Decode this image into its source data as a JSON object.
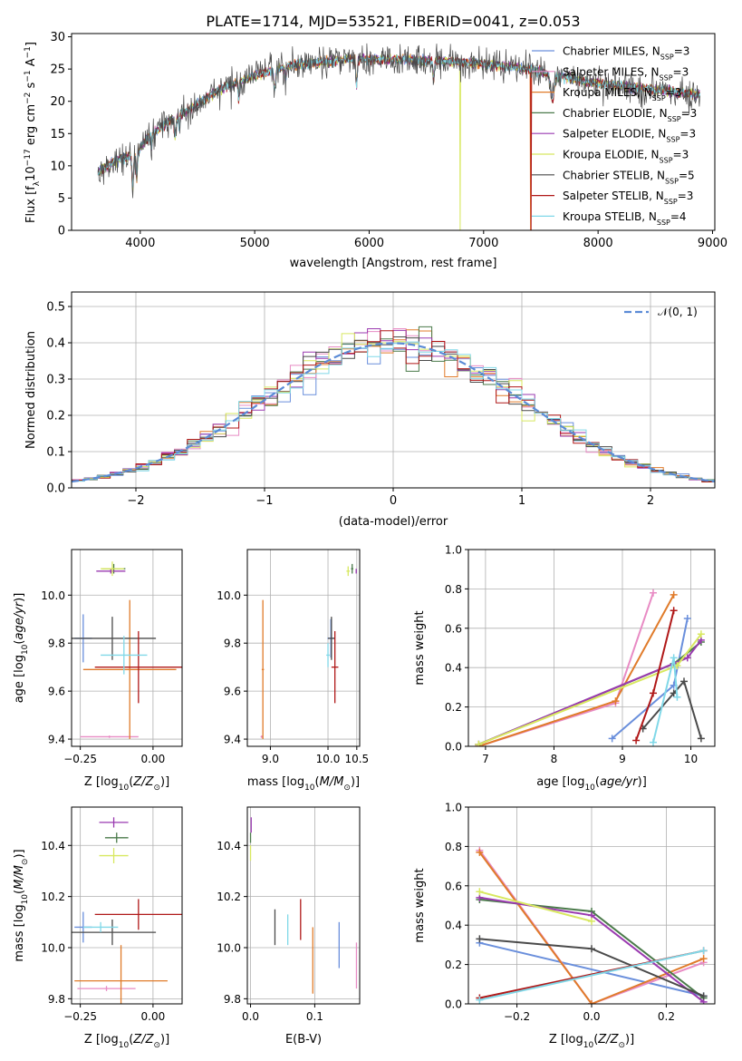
{
  "figure_title": "PLATE=1714, MJD=53521, FIBERID=0041, z=0.053",
  "colors": {
    "Chabrier MILES": "#6a8fdc",
    "Salpeter MILES": "#e88bc4",
    "Kroupa MILES": "#e07b2a",
    "Chabrier ELODIE": "#4a7a4a",
    "Salpeter ELODIE": "#9a3ab0",
    "Kroupa ELODIE": "#d8e860",
    "Chabrier STELIB": "#4a4a4a",
    "Salpeter STELIB": "#b01818",
    "Kroupa STELIB": "#80d8e8",
    "normal": "#5b8bd6",
    "grid": "#b0b0b0"
  },
  "chart_data": [
    {
      "id": "spectrum",
      "type": "line",
      "xlabel": "wavelength [Angstrom, rest frame]",
      "ylabel": "Flux [f_λ10^-17 erg cm^-2 s^-1 A^-1]",
      "xlim": [
        3400,
        9020
      ],
      "ylim": [
        0,
        30.5
      ],
      "xticks": [
        4000,
        5000,
        6000,
        7000,
        8000,
        9000
      ],
      "yticks": [
        0,
        5,
        10,
        15,
        20,
        25,
        30
      ],
      "grid": false,
      "legend_position": "right",
      "data_range": [
        3630,
        8890
      ],
      "continuum": [
        [
          3630,
          9
        ],
        [
          3800,
          11
        ],
        [
          3950,
          11.5
        ],
        [
          4050,
          14
        ],
        [
          4250,
          17
        ],
        [
          4450,
          19
        ],
        [
          4700,
          22
        ],
        [
          5000,
          24
        ],
        [
          5300,
          25.5
        ],
        [
          5800,
          26.5
        ],
        [
          6300,
          26.5
        ],
        [
          6900,
          26
        ],
        [
          7400,
          25
        ],
        [
          7900,
          23
        ],
        [
          8400,
          22
        ],
        [
          8890,
          21
        ]
      ],
      "series": [
        {
          "name": "Chabrier MILES",
          "nssp": "3"
        },
        {
          "name": "Salpeter MILES",
          "nssp": "3"
        },
        {
          "name": "Kroupa MILES",
          "nssp": "3"
        },
        {
          "name": "Chabrier ELODIE",
          "nssp": "3"
        },
        {
          "name": "Salpeter ELODIE",
          "nssp": "3"
        },
        {
          "name": "Kroupa ELODIE",
          "nssp": "3"
        },
        {
          "name": "Chabrier STELIB",
          "nssp": "5"
        },
        {
          "name": "Salpeter STELIB",
          "nssp": "3"
        },
        {
          "name": "Kroupa STELIB",
          "nssp": "4"
        }
      ]
    },
    {
      "id": "residuals",
      "type": "line",
      "xlabel": "(data-model)/error",
      "ylabel": "Normed distribution",
      "xlim": [
        -2.5,
        2.5
      ],
      "ylim": [
        0,
        0.54
      ],
      "xticks": [
        -2,
        -1,
        0,
        1,
        2
      ],
      "yticks": [
        0.0,
        0.1,
        0.2,
        0.3,
        0.4,
        0.5
      ],
      "grid": true,
      "legend": "𝒩(0, 1)",
      "legend_position": "top-right",
      "bin_width": 0.1
    },
    {
      "id": "age-vs-Z",
      "type": "scatter",
      "xlabel": "Z [log10(Z/Z⊙)]",
      "ylabel": "age [log10(age/yr)]",
      "xlim": [
        -0.28,
        0.1
      ],
      "ylim": [
        9.37,
        10.19
      ],
      "xticks": [
        -0.25,
        0.0
      ],
      "yticks": [
        9.4,
        9.6,
        9.8,
        10.0
      ],
      "grid": true,
      "points": [
        {
          "series": "Chabrier MILES",
          "x": -0.24,
          "xerr": 0.03,
          "y": 9.82,
          "yerr": 0.1
        },
        {
          "series": "Salpeter MILES",
          "x": -0.15,
          "xerr": 0.1,
          "y": 9.41,
          "yerr": 0.005
        },
        {
          "series": "Kroupa MILES",
          "x": -0.08,
          "xerr": 0.16,
          "y": 9.69,
          "yerr": 0.29
        },
        {
          "series": "Chabrier ELODIE",
          "x": -0.135,
          "xerr": 0.04,
          "y": 10.11,
          "yerr": 0.02
        },
        {
          "series": "Salpeter ELODIE",
          "x": -0.145,
          "xerr": 0.05,
          "y": 10.1,
          "yerr": 0.01
        },
        {
          "series": "Kroupa ELODIE",
          "x": -0.14,
          "xerr": 0.04,
          "y": 10.11,
          "yerr": 0.03
        },
        {
          "series": "Chabrier STELIB",
          "x": -0.14,
          "xerr": 0.15,
          "y": 9.82,
          "yerr": 0.09
        },
        {
          "series": "Salpeter STELIB",
          "x": -0.05,
          "xerr": 0.15,
          "y": 9.7,
          "yerr": 0.15
        },
        {
          "series": "Kroupa STELIB",
          "x": -0.1,
          "xerr": 0.08,
          "y": 9.75,
          "yerr": 0.08
        }
      ]
    },
    {
      "id": "age-vs-mass",
      "type": "scatter",
      "xlabel": "mass [log10(M/M⊙)]",
      "ylabel": "",
      "xlim": [
        8.6,
        10.55
      ],
      "ylim": [
        9.37,
        10.19
      ],
      "xticks": [
        9.0,
        10.0,
        10.5
      ],
      "yticks": [
        9.4,
        9.6,
        9.8,
        10.0
      ],
      "grid": true,
      "points": [
        {
          "series": "Chabrier MILES",
          "x": 10.05,
          "xerr": 0.06,
          "y": 9.82,
          "yerr": 0.08
        },
        {
          "series": "Salpeter MILES",
          "x": 8.85,
          "xerr": 0.02,
          "y": 9.41,
          "yerr": 0.005
        },
        {
          "series": "Kroupa MILES",
          "x": 8.87,
          "xerr": 0.02,
          "y": 9.69,
          "yerr": 0.29
        },
        {
          "series": "Chabrier ELODIE",
          "x": 10.42,
          "xerr": 0.02,
          "y": 10.11,
          "yerr": 0.02
        },
        {
          "series": "Salpeter ELODIE",
          "x": 10.49,
          "xerr": 0.01,
          "y": 10.1,
          "yerr": 0.01
        },
        {
          "series": "Kroupa ELODIE",
          "x": 10.35,
          "xerr": 0.03,
          "y": 10.1,
          "yerr": 0.02
        },
        {
          "series": "Chabrier STELIB",
          "x": 10.06,
          "xerr": 0.06,
          "y": 9.82,
          "yerr": 0.09
        },
        {
          "series": "Salpeter STELIB",
          "x": 10.12,
          "xerr": 0.06,
          "y": 9.7,
          "yerr": 0.15
        },
        {
          "series": "Kroupa STELIB",
          "x": 10.0,
          "xerr": 0.03,
          "y": 9.75,
          "yerr": 0.05
        }
      ]
    },
    {
      "id": "weight-vs-age",
      "type": "line",
      "xlabel": "age [log10(age/yr)]",
      "ylabel": "mass weight",
      "xlim": [
        6.75,
        10.35
      ],
      "ylim": [
        0,
        1.0
      ],
      "xticks": [
        7,
        8,
        9,
        10
      ],
      "yticks": [
        0.0,
        0.2,
        0.4,
        0.6,
        0.8,
        1.0
      ],
      "grid": true,
      "series": [
        {
          "name": "Chabrier MILES",
          "x": [
            8.85,
            9.75,
            9.95
          ],
          "y": [
            0.04,
            0.31,
            0.65
          ]
        },
        {
          "name": "Salpeter MILES",
          "x": [
            6.9,
            8.9,
            9.45
          ],
          "y": [
            0.0,
            0.22,
            0.78
          ]
        },
        {
          "name": "Kroupa MILES",
          "x": [
            6.9,
            8.9,
            9.75
          ],
          "y": [
            0.0,
            0.23,
            0.77
          ]
        },
        {
          "name": "Chabrier ELODIE",
          "x": [
            6.9,
            9.75,
            10.15
          ],
          "y": [
            0.01,
            0.42,
            0.53
          ]
        },
        {
          "name": "Salpeter ELODIE",
          "x": [
            6.9,
            9.95,
            10.15
          ],
          "y": [
            0.01,
            0.45,
            0.54
          ]
        },
        {
          "name": "Kroupa ELODIE",
          "x": [
            6.9,
            9.8,
            10.15
          ],
          "y": [
            0.01,
            0.41,
            0.57
          ]
        },
        {
          "name": "Chabrier STELIB",
          "x": [
            9.3,
            9.75,
            9.9,
            10.15
          ],
          "y": [
            0.09,
            0.27,
            0.33,
            0.04
          ]
        },
        {
          "name": "Salpeter STELIB",
          "x": [
            9.2,
            9.45,
            9.75
          ],
          "y": [
            0.03,
            0.27,
            0.69
          ]
        },
        {
          "name": "Kroupa STELIB",
          "x": [
            9.45,
            9.75,
            9.8
          ],
          "y": [
            0.02,
            0.45,
            0.25
          ]
        }
      ]
    },
    {
      "id": "mass-vs-Z",
      "type": "scatter",
      "xlabel": "Z [log10(Z/Z⊙)]",
      "ylabel": "mass [log10(M/M⊙)]",
      "xlim": [
        -0.28,
        0.1
      ],
      "ylim": [
        9.78,
        10.55
      ],
      "xticks": [
        -0.25,
        0.0
      ],
      "yticks": [
        9.8,
        10.0,
        10.2,
        10.4
      ],
      "grid": true,
      "points": [
        {
          "series": "Chabrier MILES",
          "x": -0.24,
          "xerr": 0.03,
          "y": 10.08,
          "yerr": 0.06
        },
        {
          "series": "Salpeter MILES",
          "x": -0.16,
          "xerr": 0.1,
          "y": 9.84,
          "yerr": 0.01
        },
        {
          "series": "Kroupa MILES",
          "x": -0.11,
          "xerr": 0.16,
          "y": 9.87,
          "yerr": 0.14
        },
        {
          "series": "Chabrier ELODIE",
          "x": -0.125,
          "xerr": 0.04,
          "y": 10.43,
          "yerr": 0.02
        },
        {
          "series": "Salpeter ELODIE",
          "x": -0.135,
          "xerr": 0.05,
          "y": 10.49,
          "yerr": 0.02
        },
        {
          "series": "Kroupa ELODIE",
          "x": -0.135,
          "xerr": 0.05,
          "y": 10.36,
          "yerr": 0.03
        },
        {
          "series": "Chabrier STELIB",
          "x": -0.14,
          "xerr": 0.15,
          "y": 10.06,
          "yerr": 0.05
        },
        {
          "series": "Salpeter STELIB",
          "x": -0.05,
          "xerr": 0.15,
          "y": 10.13,
          "yerr": 0.06
        },
        {
          "series": "Kroupa STELIB",
          "x": -0.18,
          "xerr": 0.06,
          "y": 10.08,
          "yerr": 0.02
        }
      ]
    },
    {
      "id": "mass-vs-EBV",
      "type": "scatter",
      "xlabel": "E(B-V)",
      "ylabel": "",
      "xlim": [
        -0.005,
        0.17
      ],
      "ylim": [
        9.78,
        10.55
      ],
      "xticks": [
        0.0,
        0.1
      ],
      "yticks": [
        9.8,
        10.0,
        10.2,
        10.4
      ],
      "grid": true,
      "points": [
        {
          "series": "Chabrier MILES",
          "x": 0.138,
          "y": 10.01,
          "yerr": 0.09
        },
        {
          "series": "Salpeter MILES",
          "x": 0.165,
          "y": 9.93,
          "yerr": 0.09
        },
        {
          "series": "Kroupa MILES",
          "x": 0.097,
          "y": 9.95,
          "yerr": 0.13
        },
        {
          "series": "Chabrier ELODIE",
          "x": 0.0,
          "y": 10.43,
          "yerr": 0.02
        },
        {
          "series": "Salpeter ELODIE",
          "x": 0.001,
          "y": 10.48,
          "yerr": 0.03
        },
        {
          "series": "Kroupa ELODIE",
          "x": 0.0,
          "y": 10.37,
          "yerr": 0.03
        },
        {
          "series": "Chabrier STELIB",
          "x": 0.038,
          "y": 10.08,
          "yerr": 0.07
        },
        {
          "series": "Salpeter STELIB",
          "x": 0.078,
          "y": 10.11,
          "yerr": 0.08
        },
        {
          "series": "Kroupa STELIB",
          "x": 0.058,
          "y": 10.07,
          "yerr": 0.06
        }
      ]
    },
    {
      "id": "weight-vs-Z",
      "type": "line",
      "xlabel": "Z [log10(Z/Z⊙)]",
      "ylabel": "mass weight",
      "xlim": [
        -0.33,
        0.33
      ],
      "ylim": [
        0,
        1.0
      ],
      "xticks": [
        -0.2,
        0.0,
        0.2
      ],
      "yticks": [
        0.0,
        0.2,
        0.4,
        0.6,
        0.8,
        1.0
      ],
      "grid": true,
      "series": [
        {
          "name": "Chabrier MILES",
          "x": [
            -0.3,
            0.3
          ],
          "y": [
            0.31,
            0.04
          ]
        },
        {
          "name": "Salpeter MILES",
          "x": [
            -0.3,
            0.0,
            0.3
          ],
          "y": [
            0.78,
            0.0,
            0.21
          ]
        },
        {
          "name": "Kroupa MILES",
          "x": [
            -0.3,
            0.0,
            0.3
          ],
          "y": [
            0.77,
            0.0,
            0.23
          ]
        },
        {
          "name": "Chabrier ELODIE",
          "x": [
            -0.3,
            0.0,
            0.3
          ],
          "y": [
            0.53,
            0.47,
            0.03
          ]
        },
        {
          "name": "Salpeter ELODIE",
          "x": [
            -0.3,
            0.0,
            0.3
          ],
          "y": [
            0.54,
            0.45,
            0.01
          ]
        },
        {
          "name": "Kroupa ELODIE",
          "x": [
            -0.3,
            0.0
          ],
          "y": [
            0.57,
            0.42
          ]
        },
        {
          "name": "Chabrier STELIB",
          "x": [
            -0.3,
            0.0,
            0.3
          ],
          "y": [
            0.33,
            0.28,
            0.04
          ]
        },
        {
          "name": "Salpeter STELIB",
          "x": [
            -0.3,
            0.3
          ],
          "y": [
            0.03,
            0.27
          ]
        },
        {
          "name": "Kroupa STELIB",
          "x": [
            -0.3,
            0.3
          ],
          "y": [
            0.02,
            0.27
          ]
        }
      ]
    }
  ]
}
